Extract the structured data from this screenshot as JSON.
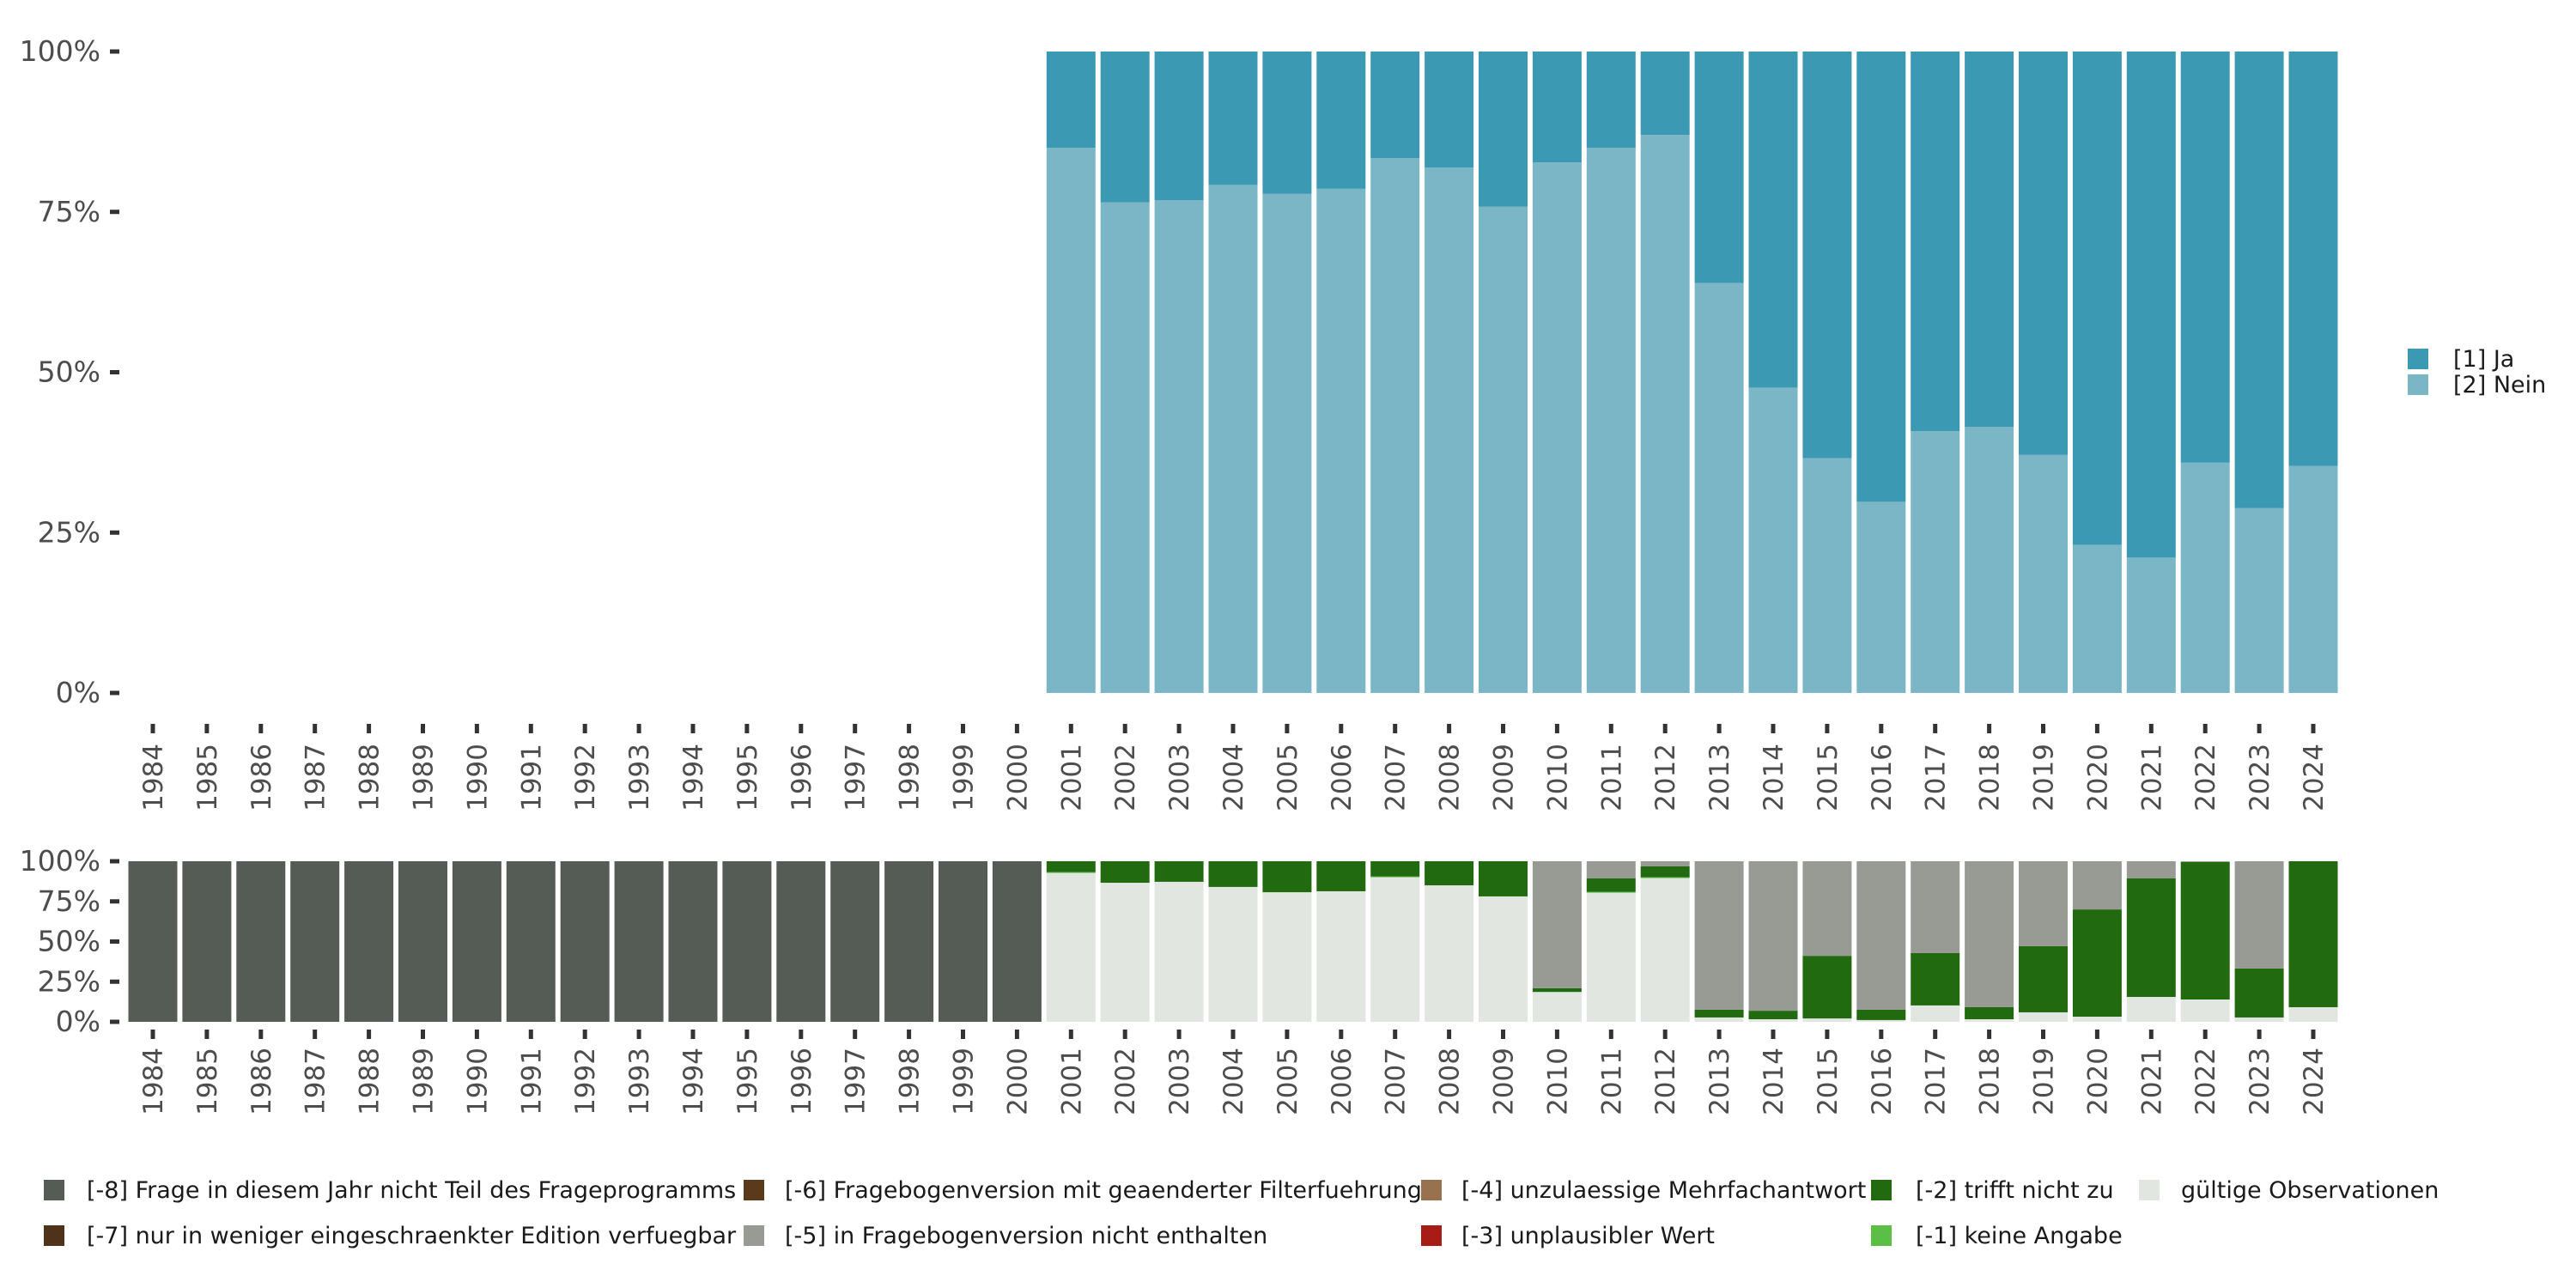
{
  "chart_data": [
    {
      "type": "bar",
      "stacked": true,
      "normalized": true,
      "title": "",
      "xlabel": "",
      "ylabel": "",
      "ylim": [
        0,
        1
      ],
      "yticks": [
        {
          "value": 0,
          "label": "0%"
        },
        {
          "value": 0.25,
          "label": "25%"
        },
        {
          "value": 0.5,
          "label": "50%"
        },
        {
          "value": 0.75,
          "label": "75%"
        },
        {
          "value": 1,
          "label": "100%"
        }
      ],
      "grid": false,
      "legend_position": "right",
      "categories": [
        "1984",
        "1985",
        "1986",
        "1987",
        "1988",
        "1989",
        "1990",
        "1991",
        "1992",
        "1993",
        "1994",
        "1995",
        "1996",
        "1997",
        "1998",
        "1999",
        "2000",
        "2001",
        "2002",
        "2003",
        "2004",
        "2005",
        "2006",
        "2007",
        "2008",
        "2009",
        "2010",
        "2011",
        "2012",
        "2013",
        "2014",
        "2015",
        "2016",
        "2017",
        "2018",
        "2019",
        "2020",
        "2021",
        "2022",
        "2023",
        "2024"
      ],
      "series": [
        {
          "name": "[2] Nein",
          "color": "#7AB6C6",
          "values": [
            null,
            null,
            null,
            null,
            null,
            null,
            null,
            null,
            null,
            null,
            null,
            null,
            null,
            null,
            null,
            null,
            null,
            0.85,
            0.765,
            0.768,
            0.792,
            0.778,
            0.786,
            0.834,
            0.819,
            0.758,
            0.827,
            0.85,
            0.87,
            0.639,
            0.476,
            0.366,
            0.298,
            0.408,
            0.415,
            0.371,
            0.231,
            0.211,
            0.359,
            0.288,
            0.354
          ]
        },
        {
          "name": "[1] Ja",
          "color": "#3C99B3",
          "values": [
            null,
            null,
            null,
            null,
            null,
            null,
            null,
            null,
            null,
            null,
            null,
            null,
            null,
            null,
            null,
            null,
            null,
            0.15,
            0.235,
            0.232,
            0.208,
            0.222,
            0.214,
            0.166,
            0.181,
            0.242,
            0.173,
            0.15,
            0.13,
            0.361,
            0.524,
            0.634,
            0.702,
            0.592,
            0.585,
            0.629,
            0.769,
            0.789,
            0.641,
            0.712,
            0.646
          ]
        }
      ],
      "legend": [
        {
          "label": "[1] Ja",
          "color": "#3C99B3"
        },
        {
          "label": "[2] Nein",
          "color": "#7AB6C6"
        }
      ]
    },
    {
      "type": "bar",
      "stacked": true,
      "normalized": true,
      "title": "",
      "xlabel": "",
      "ylabel": "",
      "ylim": [
        0,
        1
      ],
      "yticks": [
        {
          "value": 0,
          "label": "0%"
        },
        {
          "value": 0.25,
          "label": "25%"
        },
        {
          "value": 0.5,
          "label": "50%"
        },
        {
          "value": 0.75,
          "label": "75%"
        },
        {
          "value": 1,
          "label": "100%"
        }
      ],
      "grid": false,
      "legend_position": "bottom",
      "categories": [
        "1984",
        "1985",
        "1986",
        "1987",
        "1988",
        "1989",
        "1990",
        "1991",
        "1992",
        "1993",
        "1994",
        "1995",
        "1996",
        "1997",
        "1998",
        "1999",
        "2000",
        "2001",
        "2002",
        "2003",
        "2004",
        "2005",
        "2006",
        "2007",
        "2008",
        "2009",
        "2010",
        "2011",
        "2012",
        "2013",
        "2014",
        "2015",
        "2016",
        "2017",
        "2018",
        "2019",
        "2020",
        "2021",
        "2022",
        "2023",
        "2024"
      ],
      "series": [
        {
          "name": "gültige Observationen",
          "color": "#E1E6E1",
          "values": [
            0,
            0,
            0,
            0,
            0,
            0,
            0,
            0,
            0,
            0,
            0,
            0,
            0,
            0,
            0,
            0,
            0,
            0.927,
            0.866,
            0.872,
            0.84,
            0.807,
            0.813,
            0.9,
            0.85,
            0.781,
            0.186,
            0.804,
            0.895,
            0.027,
            0.016,
            0.021,
            0.011,
            0.102,
            0.016,
            0.059,
            0.032,
            0.155,
            0.139,
            0.027,
            0.091
          ]
        },
        {
          "name": "[-1] keine Angabe",
          "color": "#5BBF45",
          "values": [
            0,
            0,
            0,
            0,
            0,
            0,
            0,
            0,
            0,
            0,
            0,
            0,
            0,
            0,
            0,
            0,
            0,
            0.005,
            0,
            0,
            0,
            0,
            0,
            0.005,
            0,
            0,
            0,
            0.005,
            0.005,
            0,
            0,
            0,
            0,
            0,
            0,
            0,
            0,
            0,
            0,
            0,
            0
          ]
        },
        {
          "name": "[-2] trifft nicht zu",
          "color": "#226A10",
          "values": [
            0,
            0,
            0,
            0,
            0,
            0,
            0,
            0,
            0,
            0,
            0,
            0,
            0,
            0,
            0,
            0,
            0,
            0.068,
            0.134,
            0.128,
            0.16,
            0.193,
            0.187,
            0.095,
            0.15,
            0.219,
            0.023,
            0.084,
            0.068,
            0.048,
            0.053,
            0.39,
            0.064,
            0.326,
            0.075,
            0.412,
            0.668,
            0.738,
            0.856,
            0.305,
            0.909
          ]
        },
        {
          "name": "[-3] unplausibler Wert",
          "color": "#A81C17",
          "values": [
            0,
            0,
            0,
            0,
            0,
            0,
            0,
            0,
            0,
            0,
            0,
            0,
            0,
            0,
            0,
            0,
            0,
            0,
            0,
            0,
            0,
            0,
            0,
            0,
            0,
            0,
            0,
            0,
            0,
            0,
            0,
            0,
            0,
            0,
            0,
            0,
            0,
            0,
            0,
            0,
            0
          ]
        },
        {
          "name": "[-4] unzulaessige Mehrfachantwort",
          "color": "#98724F",
          "values": [
            0,
            0,
            0,
            0,
            0,
            0,
            0,
            0,
            0,
            0,
            0,
            0,
            0,
            0,
            0,
            0,
            0,
            0,
            0,
            0,
            0,
            0,
            0,
            0,
            0,
            0,
            0,
            0,
            0,
            0,
            0,
            0,
            0,
            0,
            0,
            0,
            0,
            0,
            0,
            0,
            0
          ]
        },
        {
          "name": "[-5] in Fragebogenversion nicht enthalten",
          "color": "#979B94",
          "values": [
            0,
            0,
            0,
            0,
            0,
            0,
            0,
            0,
            0,
            0,
            0,
            0,
            0,
            0,
            0,
            0,
            0,
            0,
            0,
            0,
            0,
            0,
            0,
            0,
            0,
            0,
            0.791,
            0.107,
            0.032,
            0.925,
            0.931,
            0.589,
            0.925,
            0.572,
            0.909,
            0.529,
            0.3,
            0.107,
            0.005,
            0.668,
            0
          ]
        },
        {
          "name": "[-6] Fragebogenversion mit geaenderter Filterfuehrung",
          "color": "#5A3A1A",
          "values": [
            0,
            0,
            0,
            0,
            0,
            0,
            0,
            0,
            0,
            0,
            0,
            0,
            0,
            0,
            0,
            0,
            0,
            0,
            0,
            0,
            0,
            0,
            0,
            0,
            0,
            0,
            0,
            0,
            0,
            0,
            0,
            0,
            0,
            0,
            0,
            0,
            0,
            0,
            0,
            0,
            0
          ]
        },
        {
          "name": "[-7] nur in weniger eingeschraenkter Edition verfuegbar",
          "color": "#4E321A",
          "values": [
            0,
            0,
            0,
            0,
            0,
            0,
            0,
            0,
            0,
            0,
            0,
            0,
            0,
            0,
            0,
            0,
            0,
            0,
            0,
            0,
            0,
            0,
            0,
            0,
            0,
            0,
            0,
            0,
            0,
            0,
            0,
            0,
            0,
            0,
            0,
            0,
            0,
            0,
            0,
            0,
            0
          ]
        },
        {
          "name": "[-8] Frage in diesem Jahr nicht Teil des Frageprogramms",
          "color": "#555B55",
          "values": [
            1,
            1,
            1,
            1,
            1,
            1,
            1,
            1,
            1,
            1,
            1,
            1,
            1,
            1,
            1,
            1,
            1,
            0,
            0,
            0,
            0,
            0,
            0,
            0,
            0,
            0,
            0,
            0,
            0,
            0,
            0,
            0,
            0,
            0,
            0,
            0,
            0,
            0,
            0,
            0,
            0
          ]
        }
      ],
      "legend": [
        {
          "label": "[-8] Frage in diesem Jahr nicht Teil des Frageprogramms",
          "color": "#555B55"
        },
        {
          "label": "[-7] nur in weniger eingeschraenkter Edition verfuegbar",
          "color": "#4E321A"
        },
        {
          "label": "[-6] Fragebogenversion mit geaenderter Filterfuehrung",
          "color": "#5A3A1A"
        },
        {
          "label": "[-5] in Fragebogenversion nicht enthalten",
          "color": "#979B94"
        },
        {
          "label": "[-4] unzulaessige Mehrfachantwort",
          "color": "#98724F"
        },
        {
          "label": "[-3] unplausibler Wert",
          "color": "#A81C17"
        },
        {
          "label": "[-2] trifft nicht zu",
          "color": "#226A10"
        },
        {
          "label": "[-1] keine Angabe",
          "color": "#5BBF45"
        },
        {
          "label": "gültige Observationen",
          "color": "#E1E6E1"
        }
      ]
    }
  ]
}
